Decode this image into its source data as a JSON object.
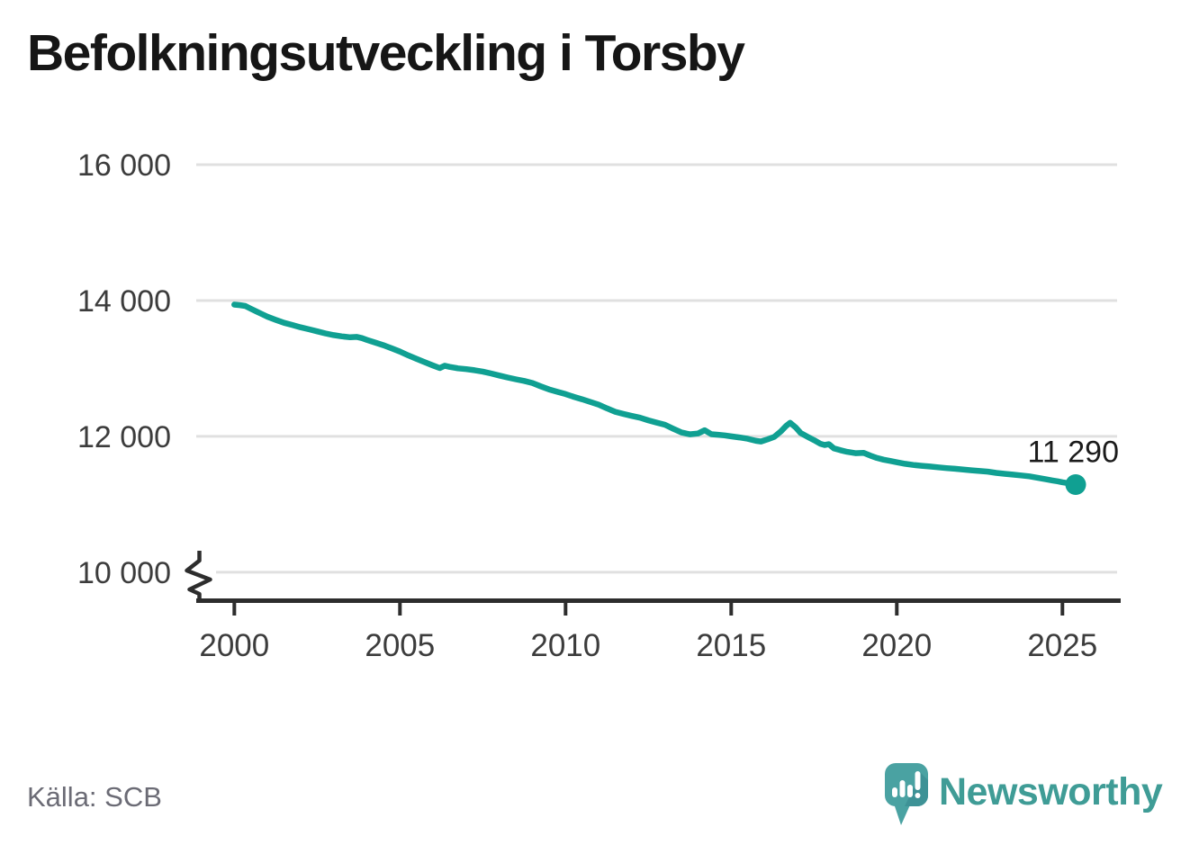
{
  "header": {
    "title": "Befolkningsutveckling i Torsby"
  },
  "footer": {
    "source": "Källa: SCB",
    "brand": "Newsworthy"
  },
  "colors": {
    "line": "#10A092",
    "endpoint": "#10A092",
    "grid": "#E0E0E0",
    "axis": "#2D2D2D",
    "tick_label": "#3C3C3C",
    "title": "#161616",
    "annotation": "#1B1B1B",
    "source_text": "#6B6B75",
    "brand_teal": "#3F9C96",
    "logo_fill": "#4AA2A2",
    "logo_shadow": "#3E9296"
  },
  "chart_data": {
    "type": "line",
    "title": "Befolkningsutveckling i Torsby",
    "xlabel": "",
    "ylabel": "",
    "xlim": [
      1998.85,
      2026.65
    ],
    "ylim": [
      9600,
      16000
    ],
    "grid": "horizontal",
    "legend": "none",
    "y_axis_break": true,
    "x_ticks": [
      2000,
      2005,
      2010,
      2015,
      2020,
      2025
    ],
    "y_ticks": [
      {
        "value": 16000,
        "label": "16 000"
      },
      {
        "value": 14000,
        "label": "14 000"
      },
      {
        "value": 12000,
        "label": "12 000"
      },
      {
        "value": 10000,
        "label": "10 000",
        "broken_by_axis_break": true
      }
    ],
    "end_label": "11 290",
    "end_value": 11290,
    "series": [
      {
        "name": "Befolkning i Torsby",
        "points": [
          [
            2000.0,
            13940
          ],
          [
            2000.17,
            13932
          ],
          [
            2000.33,
            13920
          ],
          [
            2000.5,
            13878
          ],
          [
            2000.67,
            13838
          ],
          [
            2000.83,
            13800
          ],
          [
            2001.0,
            13762
          ],
          [
            2001.25,
            13716
          ],
          [
            2001.5,
            13672
          ],
          [
            2001.75,
            13640
          ],
          [
            2002.0,
            13606
          ],
          [
            2002.25,
            13576
          ],
          [
            2002.5,
            13546
          ],
          [
            2002.75,
            13516
          ],
          [
            2003.0,
            13490
          ],
          [
            2003.25,
            13472
          ],
          [
            2003.5,
            13458
          ],
          [
            2003.7,
            13464
          ],
          [
            2003.85,
            13446
          ],
          [
            2004.0,
            13420
          ],
          [
            2004.25,
            13382
          ],
          [
            2004.5,
            13342
          ],
          [
            2004.75,
            13296
          ],
          [
            2005.0,
            13248
          ],
          [
            2005.25,
            13192
          ],
          [
            2005.5,
            13142
          ],
          [
            2005.75,
            13092
          ],
          [
            2006.0,
            13042
          ],
          [
            2006.2,
            13006
          ],
          [
            2006.35,
            13040
          ],
          [
            2006.5,
            13022
          ],
          [
            2006.75,
            13002
          ],
          [
            2007.0,
            12990
          ],
          [
            2007.25,
            12974
          ],
          [
            2007.5,
            12954
          ],
          [
            2007.75,
            12926
          ],
          [
            2008.0,
            12896
          ],
          [
            2008.25,
            12866
          ],
          [
            2008.5,
            12840
          ],
          [
            2008.75,
            12816
          ],
          [
            2009.0,
            12786
          ],
          [
            2009.25,
            12736
          ],
          [
            2009.5,
            12692
          ],
          [
            2009.75,
            12656
          ],
          [
            2010.0,
            12622
          ],
          [
            2010.25,
            12582
          ],
          [
            2010.5,
            12546
          ],
          [
            2010.75,
            12506
          ],
          [
            2011.0,
            12466
          ],
          [
            2011.25,
            12412
          ],
          [
            2011.5,
            12362
          ],
          [
            2011.75,
            12330
          ],
          [
            2012.0,
            12300
          ],
          [
            2012.25,
            12274
          ],
          [
            2012.5,
            12236
          ],
          [
            2012.75,
            12202
          ],
          [
            2013.0,
            12170
          ],
          [
            2013.25,
            12112
          ],
          [
            2013.5,
            12056
          ],
          [
            2013.75,
            12030
          ],
          [
            2014.0,
            12042
          ],
          [
            2014.2,
            12090
          ],
          [
            2014.4,
            12032
          ],
          [
            2014.6,
            12024
          ],
          [
            2014.8,
            12014
          ],
          [
            2015.0,
            12000
          ],
          [
            2015.25,
            11984
          ],
          [
            2015.5,
            11964
          ],
          [
            2015.75,
            11934
          ],
          [
            2015.9,
            11924
          ],
          [
            2016.1,
            11956
          ],
          [
            2016.3,
            11992
          ],
          [
            2016.5,
            12072
          ],
          [
            2016.65,
            12150
          ],
          [
            2016.78,
            12200
          ],
          [
            2016.95,
            12130
          ],
          [
            2017.1,
            12048
          ],
          [
            2017.3,
            11996
          ],
          [
            2017.5,
            11944
          ],
          [
            2017.7,
            11888
          ],
          [
            2017.82,
            11872
          ],
          [
            2017.95,
            11884
          ],
          [
            2018.1,
            11824
          ],
          [
            2018.3,
            11796
          ],
          [
            2018.5,
            11772
          ],
          [
            2018.75,
            11752
          ],
          [
            2019.0,
            11756
          ],
          [
            2019.2,
            11716
          ],
          [
            2019.4,
            11682
          ],
          [
            2019.6,
            11656
          ],
          [
            2019.8,
            11638
          ],
          [
            2020.0,
            11618
          ],
          [
            2020.25,
            11596
          ],
          [
            2020.5,
            11578
          ],
          [
            2020.75,
            11566
          ],
          [
            2021.0,
            11556
          ],
          [
            2021.25,
            11544
          ],
          [
            2021.5,
            11532
          ],
          [
            2021.75,
            11522
          ],
          [
            2022.0,
            11512
          ],
          [
            2022.25,
            11500
          ],
          [
            2022.5,
            11490
          ],
          [
            2022.75,
            11480
          ],
          [
            2023.0,
            11462
          ],
          [
            2023.25,
            11448
          ],
          [
            2023.5,
            11436
          ],
          [
            2023.75,
            11424
          ],
          [
            2024.0,
            11412
          ],
          [
            2024.25,
            11390
          ],
          [
            2024.5,
            11368
          ],
          [
            2024.7,
            11350
          ],
          [
            2024.85,
            11338
          ],
          [
            2025.0,
            11324
          ],
          [
            2025.15,
            11312
          ],
          [
            2025.3,
            11300
          ],
          [
            2025.4,
            11290
          ]
        ]
      }
    ]
  }
}
